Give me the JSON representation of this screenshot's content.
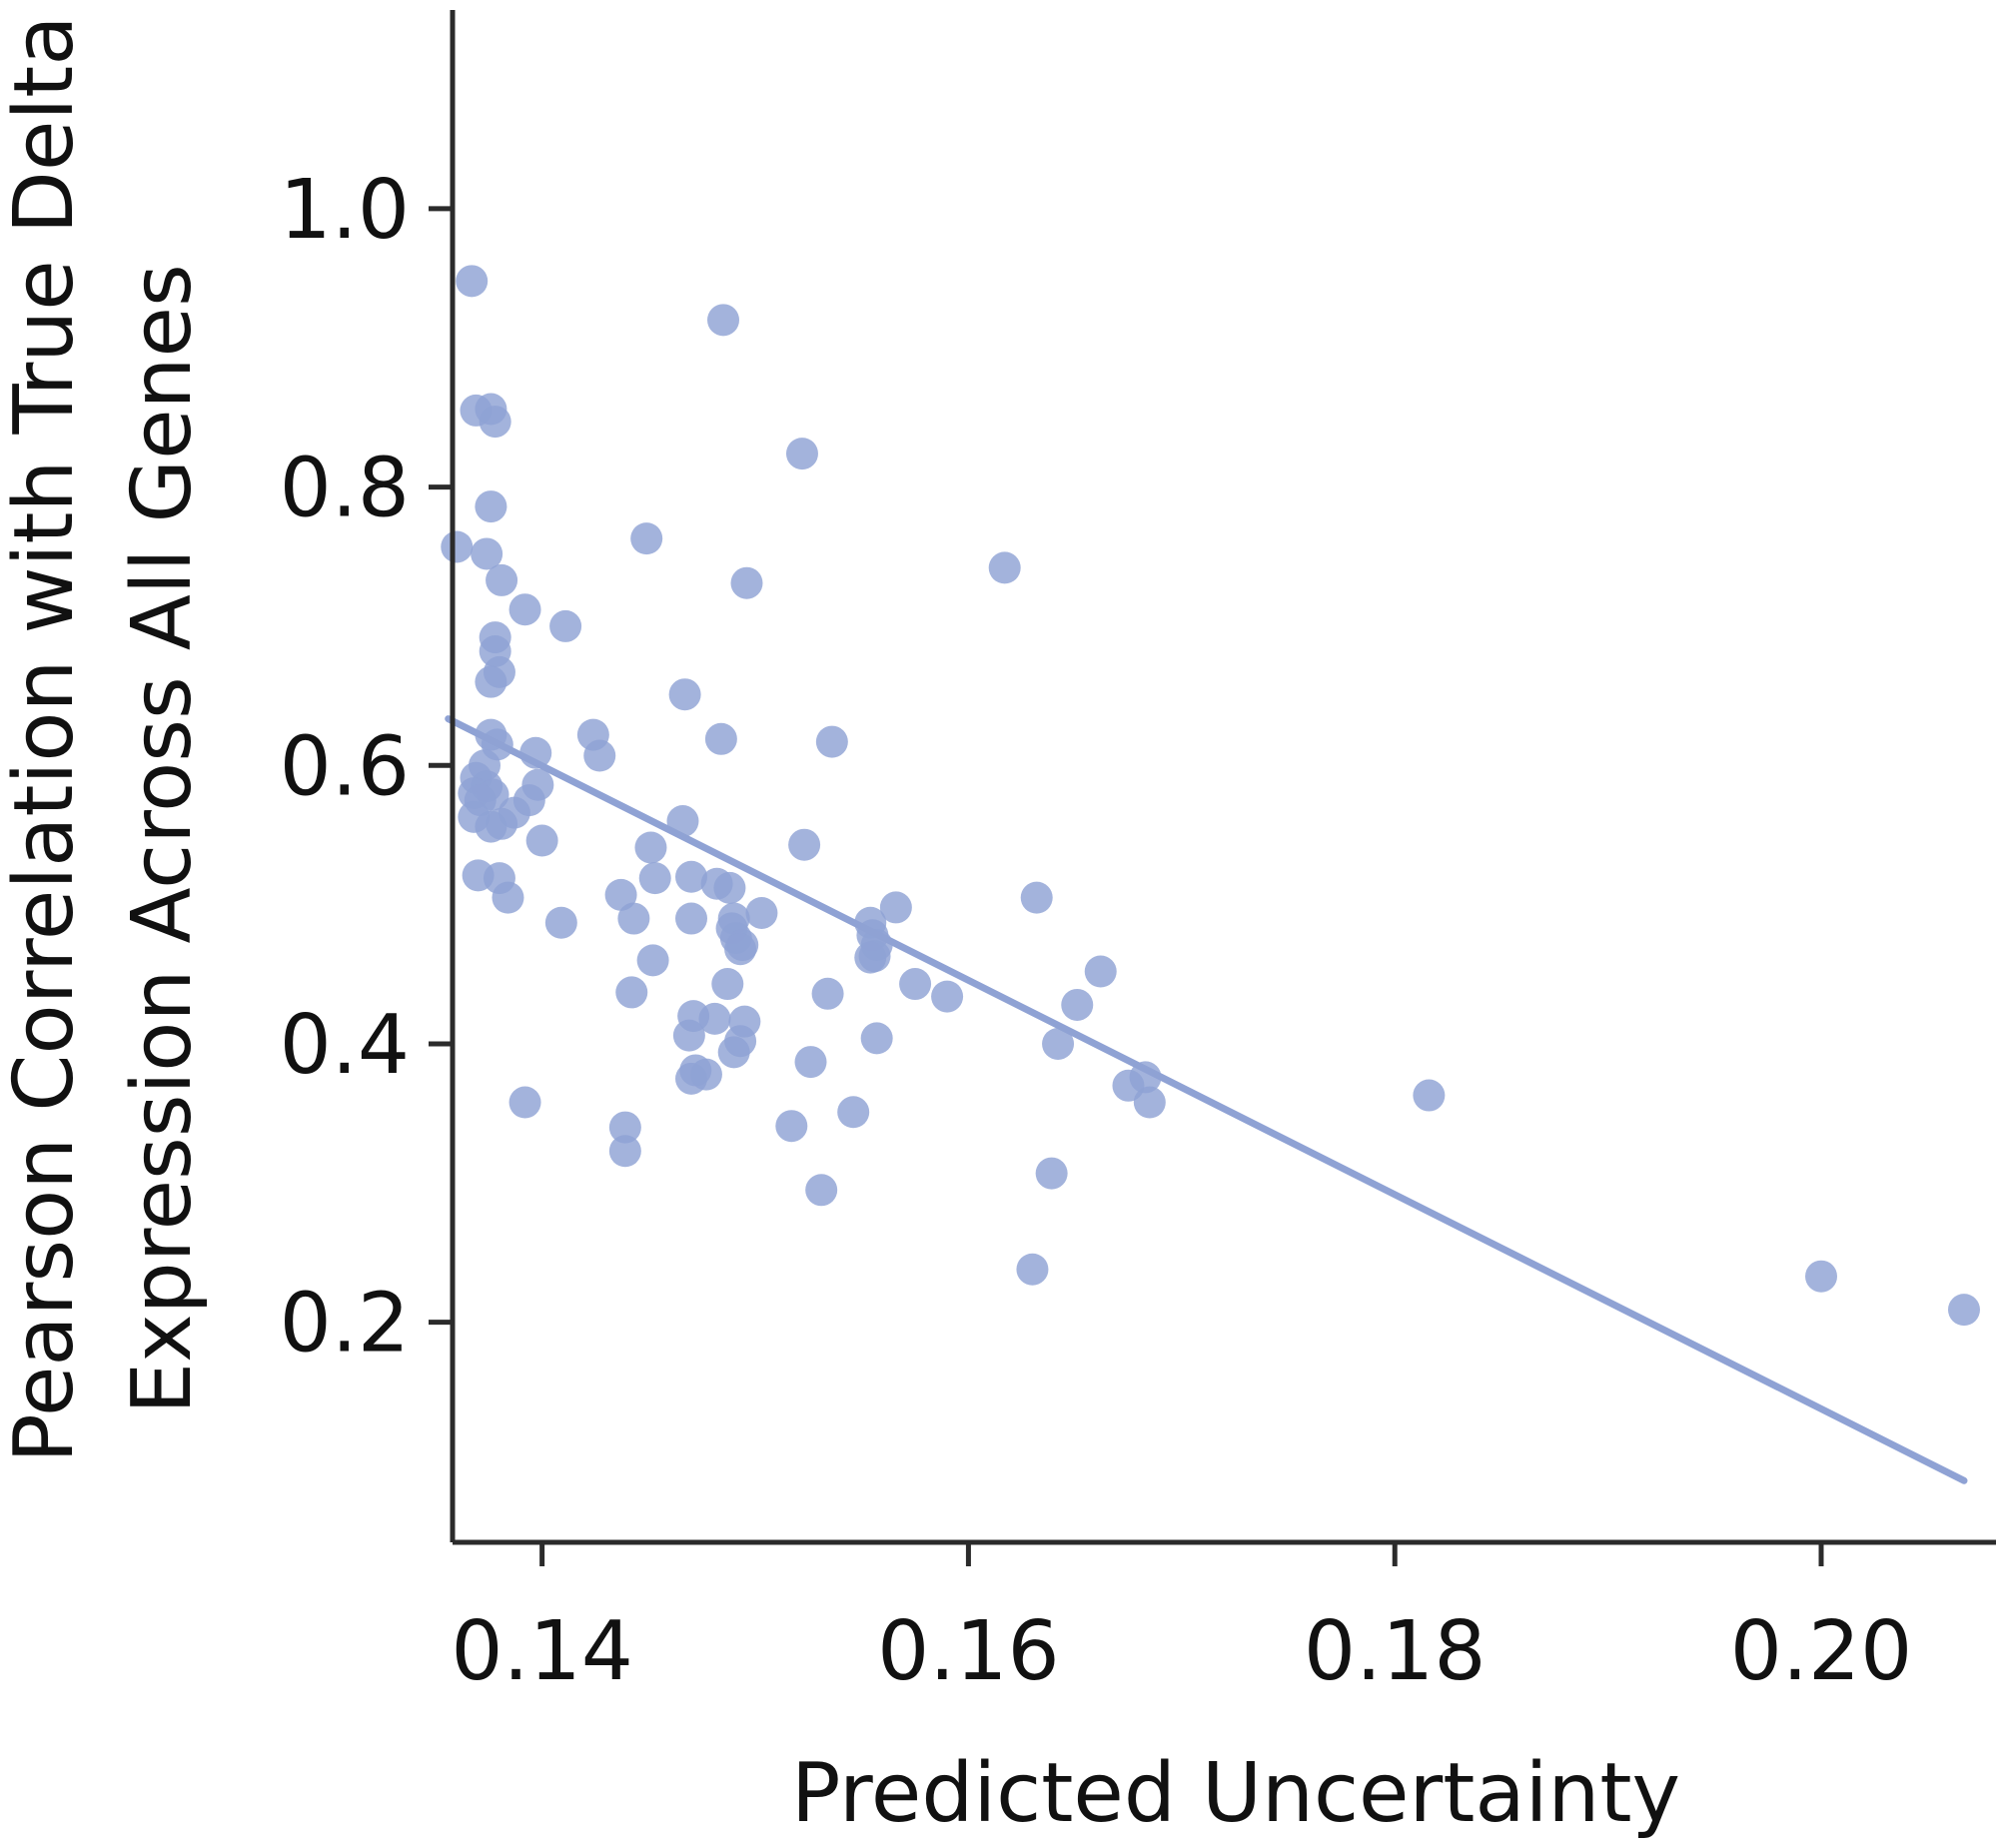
{
  "chart_data": {
    "type": "scatter",
    "title": "",
    "xlabel": "Predicted Uncertainty",
    "ylabel_lines": [
      "Pearson Correlation with True Delta",
      "Expression Across All Genes"
    ],
    "xlim": [
      0.1358,
      0.2082
    ],
    "ylim": [
      0.0419,
      1.1427
    ],
    "xticks": [
      0.14,
      0.16,
      0.18,
      0.2
    ],
    "xtick_labels": [
      "0.14",
      "0.16",
      "0.18",
      "0.20"
    ],
    "yticks": [
      0.2,
      0.4,
      0.6,
      0.8,
      1.0
    ],
    "ytick_labels": [
      "0.2",
      "0.4",
      "0.6",
      "0.8",
      "1.0"
    ],
    "grid": false,
    "color": "#8fa2d4",
    "points": {
      "x": [
        0.1367,
        0.1485,
        0.1376,
        0.1369,
        0.1378,
        0.1522,
        0.1376,
        0.136,
        0.1449,
        0.1374,
        0.1381,
        0.1496,
        0.1617,
        0.1392,
        0.1411,
        0.1378,
        0.1378,
        0.138,
        0.1376,
        0.1467,
        0.1484,
        0.1536,
        0.1424,
        0.1376,
        0.1379,
        0.1427,
        0.1397,
        0.1373,
        0.1398,
        0.1369,
        0.1374,
        0.1368,
        0.1394,
        0.1377,
        0.1371,
        0.1387,
        0.1368,
        0.1466,
        0.1381,
        0.1376,
        0.14,
        0.1451,
        0.1523,
        0.147,
        0.1453,
        0.137,
        0.138,
        0.1482,
        0.1437,
        0.1488,
        0.1384,
        0.1632,
        0.1503,
        0.1566,
        0.147,
        0.1409,
        0.1443,
        0.149,
        0.1554,
        0.1489,
        0.1555,
        0.1491,
        0.1557,
        0.1494,
        0.1452,
        0.1493,
        0.1556,
        0.1554,
        0.1662,
        0.1575,
        0.1442,
        0.159,
        0.1534,
        0.1651,
        0.1487,
        0.1471,
        0.1481,
        0.1495,
        0.1469,
        0.1557,
        0.1642,
        0.149,
        0.1493,
        0.1526,
        0.1683,
        0.1816,
        0.1675,
        0.147,
        0.1477,
        0.1472,
        0.1685,
        0.1392,
        0.1546,
        0.1517,
        0.1439,
        0.1439,
        0.1639,
        0.1531,
        0.163,
        0.2,
        0.2067
      ],
      "y": [
        0.948,
        0.92,
        0.856,
        0.855,
        0.847,
        0.824,
        0.786,
        0.757,
        0.763,
        0.752,
        0.733,
        0.731,
        0.742,
        0.712,
        0.7,
        0.692,
        0.682,
        0.667,
        0.66,
        0.651,
        0.619,
        0.617,
        0.622,
        0.622,
        0.615,
        0.607,
        0.609,
        0.6,
        0.586,
        0.591,
        0.585,
        0.58,
        0.575,
        0.579,
        0.575,
        0.566,
        0.563,
        0.56,
        0.558,
        0.556,
        0.546,
        0.541,
        0.543,
        0.52,
        0.519,
        0.521,
        0.519,
        0.515,
        0.507,
        0.512,
        0.505,
        0.505,
        0.494,
        0.498,
        0.49,
        0.487,
        0.49,
        0.49,
        0.487,
        0.483,
        0.478,
        0.476,
        0.471,
        0.471,
        0.46,
        0.468,
        0.463,
        0.462,
        0.452,
        0.443,
        0.437,
        0.434,
        0.436,
        0.428,
        0.443,
        0.42,
        0.418,
        0.416,
        0.406,
        0.404,
        0.4,
        0.394,
        0.402,
        0.387,
        0.376,
        0.363,
        0.37,
        0.375,
        0.378,
        0.381,
        0.358,
        0.358,
        0.351,
        0.341,
        0.34,
        0.323,
        0.307,
        0.295,
        0.238,
        0.233,
        0.209
      ]
    },
    "trendline": {
      "x": [
        0.1356,
        0.2067
      ],
      "y": [
        0.6335,
        0.0862
      ]
    }
  }
}
